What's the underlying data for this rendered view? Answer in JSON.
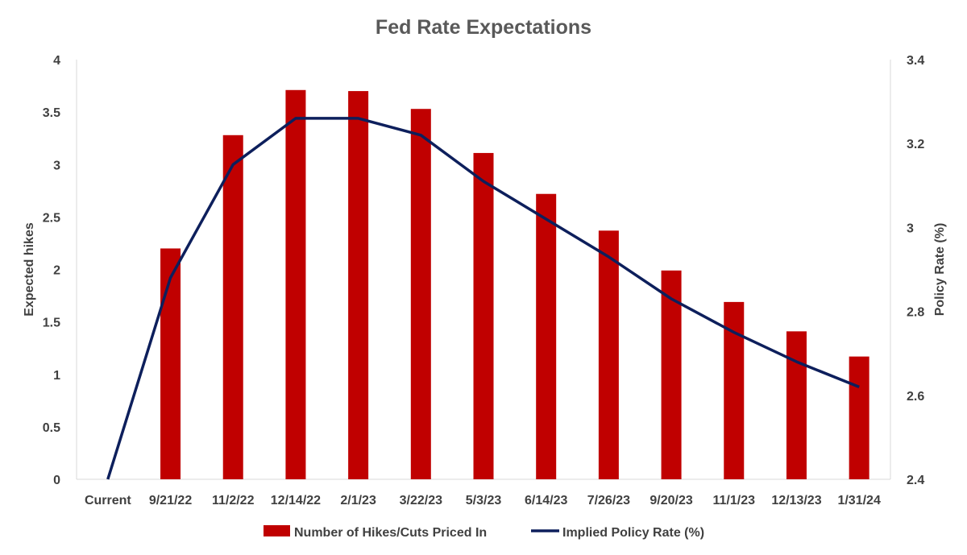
{
  "chart_data": {
    "type": "bar",
    "title": "Fed Rate Expectations",
    "categories": [
      "Current",
      "9/21/22",
      "11/2/22",
      "12/14/22",
      "2/1/23",
      "3/22/23",
      "5/3/23",
      "6/14/23",
      "7/26/23",
      "9/20/23",
      "11/1/23",
      "12/13/23",
      "1/31/24"
    ],
    "series": [
      {
        "name": "Number of Hikes/Cuts Priced In",
        "type": "bar",
        "axis": "left",
        "color": "#C00000",
        "values": [
          0,
          2.2,
          3.28,
          3.71,
          3.7,
          3.53,
          3.11,
          2.72,
          2.37,
          1.99,
          1.69,
          1.41,
          1.17
        ]
      },
      {
        "name": "Implied Policy Rate (%)",
        "type": "line",
        "axis": "right",
        "color": "#0D1F5C",
        "values": [
          2.4,
          2.88,
          3.15,
          3.26,
          3.26,
          3.22,
          3.11,
          3.02,
          2.93,
          2.83,
          2.75,
          2.68,
          2.62
        ]
      }
    ],
    "y_left": {
      "label": "Expected hikes",
      "ylim": [
        0,
        4
      ],
      "ticks": [
        "0",
        "0.5",
        "1",
        "1.5",
        "2",
        "2.5",
        "3",
        "3.5",
        "4"
      ]
    },
    "y_right": {
      "label": "Policy Rate (%)",
      "ylim": [
        2.4,
        3.4
      ],
      "ticks": [
        "2.4",
        "2.6",
        "2.8",
        "3",
        "3.2",
        "3.4"
      ]
    },
    "grid": false,
    "legend": "bottom"
  }
}
